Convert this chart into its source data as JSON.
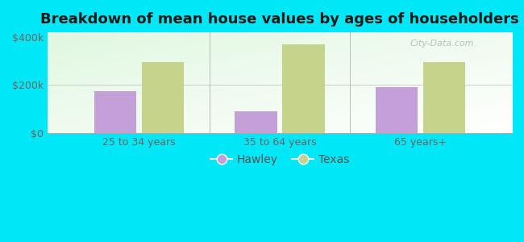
{
  "title": "Breakdown of mean house values by ages of householders",
  "categories": [
    "25 to 34 years",
    "35 to 64 years",
    "65 years+"
  ],
  "hawley_values": [
    175000,
    90000,
    192000
  ],
  "texas_values": [
    295000,
    370000,
    295000
  ],
  "ylim": [
    0,
    420000
  ],
  "ytick_vals": [
    0,
    200000,
    400000
  ],
  "ytick_labels": [
    "$0",
    "$200k",
    "$400k"
  ],
  "hawley_color": "#c4a0d8",
  "texas_color": "#c5d48a",
  "background_color": "#00e8f8",
  "title_fontsize": 13,
  "legend_labels": [
    "Hawley",
    "Texas"
  ],
  "bar_width": 0.3,
  "watermark": "City-Data.com"
}
